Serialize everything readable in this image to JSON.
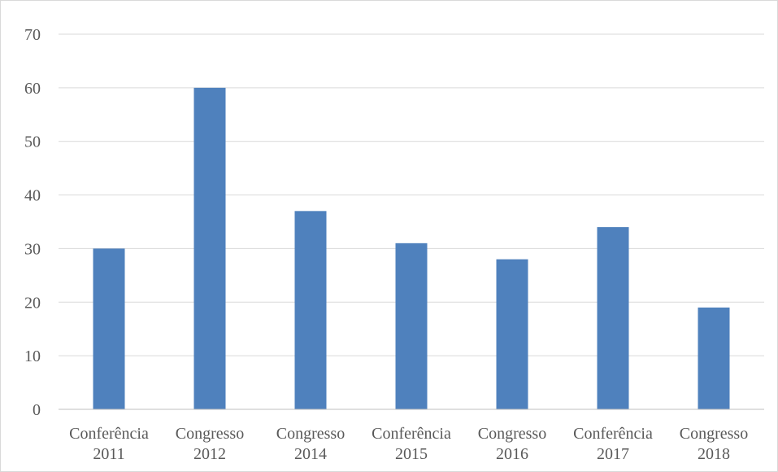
{
  "chart_data": {
    "type": "bar",
    "categories": [
      [
        "Conferência",
        "2011"
      ],
      [
        "Congresso",
        "2012"
      ],
      [
        "Congresso",
        "2014"
      ],
      [
        "Conferência",
        "2015"
      ],
      [
        "Congresso",
        "2016"
      ],
      [
        "Conferência",
        "2017"
      ],
      [
        "Congresso",
        "2018"
      ]
    ],
    "values": [
      30,
      60,
      37,
      31,
      28,
      34,
      19
    ],
    "ylim": [
      0,
      70
    ],
    "yticks": [
      0,
      10,
      20,
      30,
      40,
      50,
      60,
      70
    ],
    "grid": true,
    "bar_color": "#4f81bd",
    "grid_color": "#d9d9d9",
    "axis_color": "#bfbfbf"
  }
}
